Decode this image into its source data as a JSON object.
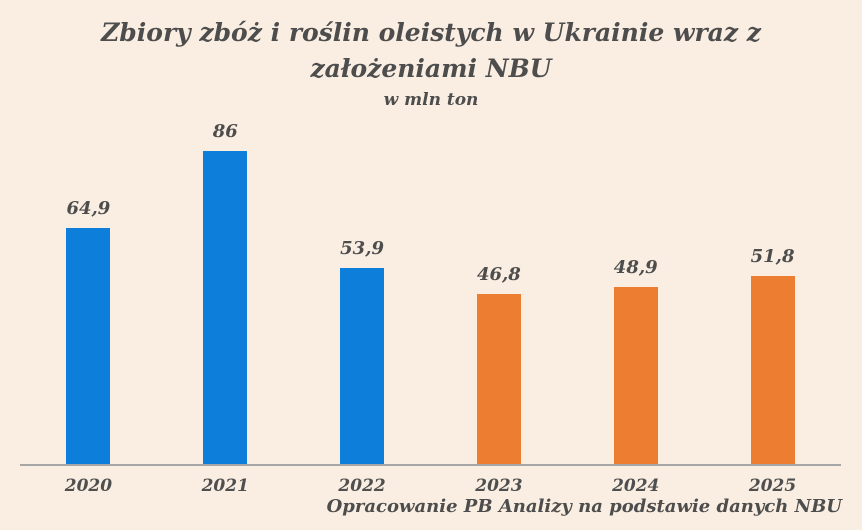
{
  "header": {
    "title_lines": [
      "Zbiory zbóż i roślin oleistych w Ukrainie wraz z",
      "założeniami NBU"
    ],
    "subtitle": "w mln ton"
  },
  "footer": {
    "source": "Opracowanie PB Analizy na podstawie danych NBU"
  },
  "colors": {
    "background": "#faeee2",
    "axis_line": "#a6a6a6",
    "text": "#4d4d4d",
    "actual_blue": "#0d7ed9",
    "forecast_orange": "#ed7d31"
  },
  "chart_data": {
    "type": "bar",
    "title": "Zbiory zbóż i roślin oleistych w Ukrainie wraz z założeniami NBU",
    "subtitle": "w mln ton",
    "categories": [
      "2020",
      "2021",
      "2022",
      "2023",
      "2024",
      "2025"
    ],
    "values": [
      64.9,
      86,
      53.9,
      46.8,
      48.9,
      51.8
    ],
    "value_labels": [
      "64,9",
      "86",
      "53,9",
      "46,8",
      "48,9",
      "51,8"
    ],
    "bar_colors": [
      "#0d7ed9",
      "#0d7ed9",
      "#0d7ed9",
      "#ed7d31",
      "#ed7d31",
      "#ed7d31"
    ],
    "xlabel": "",
    "ylabel": "w mln ton",
    "ylim": [
      0,
      96
    ],
    "grid": false,
    "legend": false,
    "y_axis_visible": false,
    "source": "Opracowanie PB Analizy na podstawie danych NBU"
  }
}
